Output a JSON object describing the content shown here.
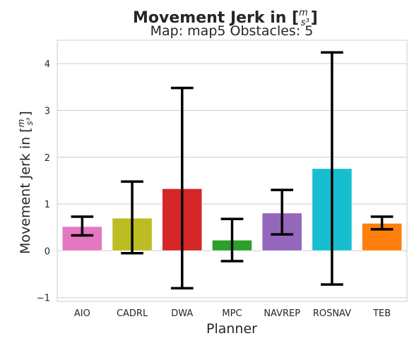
{
  "chart_data": {
    "type": "bar",
    "suptitle": "Movement Jerk in [m/s³]",
    "suptitle_parts": {
      "prefix": "Movement Jerk in [",
      "num": "m",
      "den": "s³",
      "suffix": "]"
    },
    "title": "Map: map5 Obstacles: 5",
    "xlabel": "Planner",
    "ylabel": "Movement Jerk in [m/s³]",
    "ylabel_parts": {
      "prefix": "Movement Jerk in [",
      "num": "m",
      "den": "s³",
      "suffix": "]"
    },
    "categories": [
      "AIO",
      "CADRL",
      "DWA",
      "MPC",
      "NAVREP",
      "ROSNAV",
      "TEB"
    ],
    "values": [
      0.52,
      0.7,
      1.33,
      0.23,
      0.81,
      1.76,
      0.59
    ],
    "error_low": [
      0.33,
      -0.05,
      -0.8,
      -0.22,
      0.35,
      -0.72,
      0.46
    ],
    "error_high": [
      0.73,
      1.48,
      3.48,
      0.68,
      1.3,
      4.24,
      0.73
    ],
    "colors": [
      "#e377c2",
      "#bcbd22",
      "#d62728",
      "#2ca02c",
      "#9467bd",
      "#17becf",
      "#ff7f0e"
    ],
    "error_color": "#000000",
    "ylim": [
      -1.08,
      4.5
    ],
    "yticks": [
      -1,
      0,
      1,
      2,
      3,
      4
    ],
    "grid": "horizontal",
    "style": "seaborn-whitegrid"
  }
}
